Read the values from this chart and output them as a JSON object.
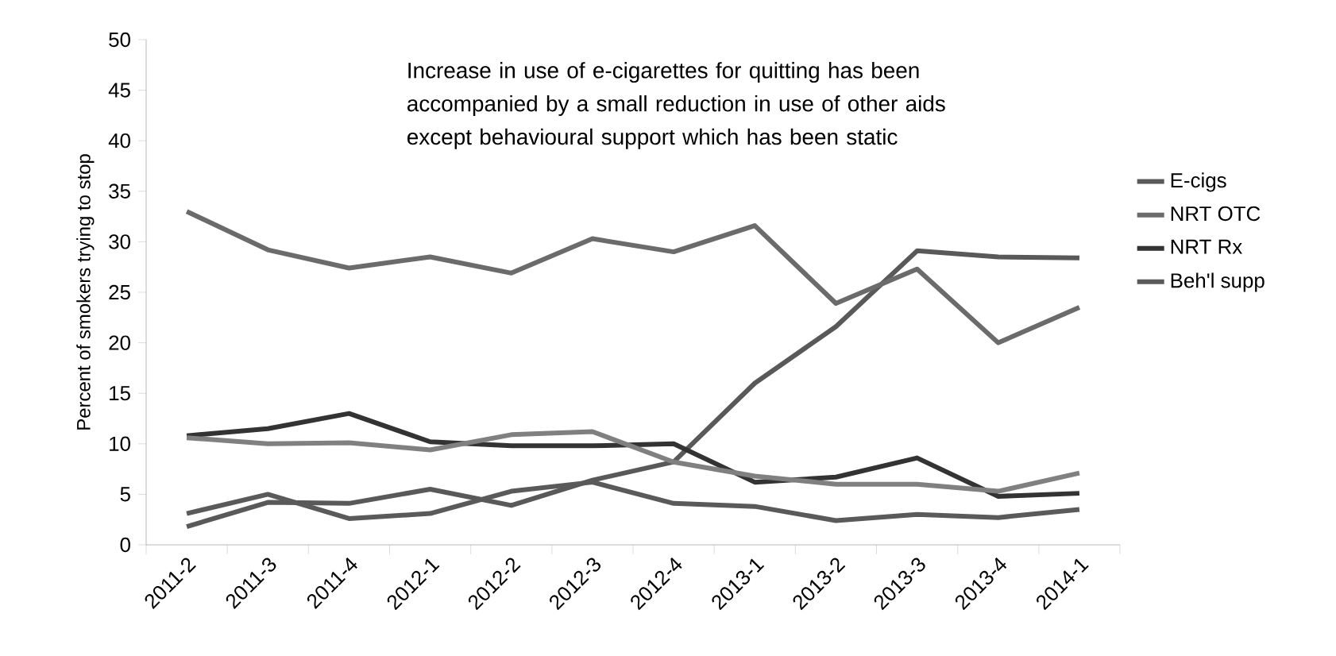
{
  "chart_data": {
    "type": "line",
    "ylabel": "Percent of smokers trying to stop",
    "annotations": [
      "Increase in use of e-cigarettes for quitting has been accompanied by a small reduction in use of other aids except behavioural support which has been static"
    ],
    "categories": [
      "2011-2",
      "2011-3",
      "2011-4",
      "2012-1",
      "2012-2",
      "2012-3",
      "2012-4",
      "2013-1",
      "2013-2",
      "2013-3",
      "2013-4",
      "2014-1"
    ],
    "series": [
      {
        "name": "E-cigs",
        "color": "#595959",
        "values": [
          1.8,
          4.2,
          4.1,
          5.5,
          3.9,
          6.4,
          8.2,
          16,
          21.6,
          29.1,
          28.5,
          28.4
        ]
      },
      {
        "name": "NRT OTC",
        "color": "#6b6b6b",
        "values": [
          33,
          29.2,
          27.4,
          28.5,
          26.9,
          30.3,
          29,
          31.6,
          23.9,
          27.3,
          20,
          23.5
        ]
      },
      {
        "name": "NRT Rx",
        "color": "#333333",
        "values": [
          10.8,
          11.5,
          13,
          10.2,
          9.8,
          9.8,
          10,
          6.2,
          6.7,
          8.6,
          4.8,
          5.1
        ]
      },
      {
        "color": "#808080",
        "values": [
          10.6,
          10,
          10.1,
          9.4,
          10.9,
          11.2,
          8.2,
          6.8,
          6,
          6,
          5.3,
          7.1
        ]
      },
      {
        "name": "Beh'l supp",
        "color": "#5a5a5a",
        "values": [
          3.1,
          5,
          2.6,
          3.1,
          5.3,
          6.2,
          4.1,
          3.8,
          2.4,
          3,
          2.7,
          3.5
        ]
      }
    ],
    "ylim": [
      0,
      50
    ],
    "yticks": [
      0,
      5,
      10,
      15,
      20,
      25,
      30,
      35,
      40,
      45,
      50
    ],
    "legend": "right",
    "grid": false,
    "marker": "none",
    "line_style": "solid"
  }
}
